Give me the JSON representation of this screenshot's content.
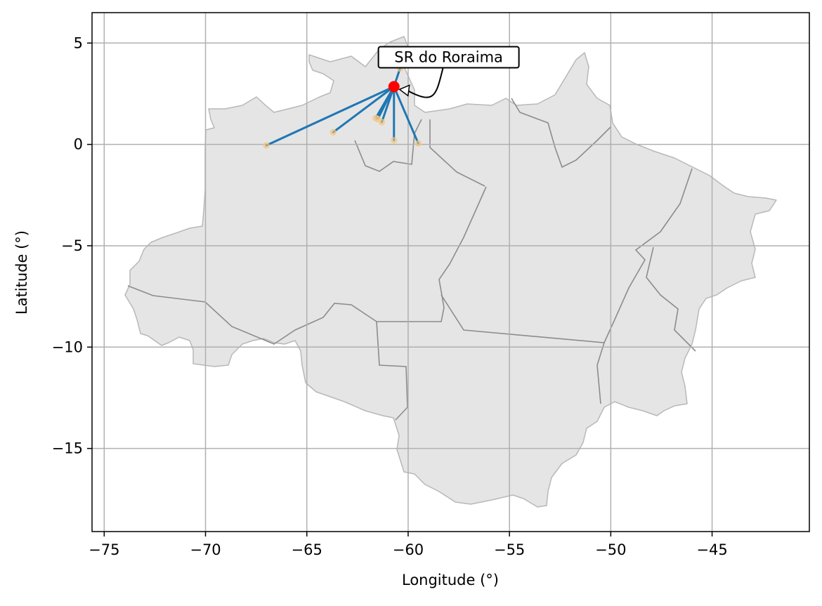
{
  "chart_data": {
    "type": "scatter",
    "xlabel": "Longitude (°)",
    "ylabel": "Latitude (°)",
    "xlim": [
      -75.6,
      -40.2
    ],
    "ylim": [
      -19.1,
      6.5
    ],
    "grid": true,
    "xticks": [
      {
        "value": -75,
        "label": "−75"
      },
      {
        "value": -70,
        "label": "−70"
      },
      {
        "value": -65,
        "label": "−65"
      },
      {
        "value": -60,
        "label": "−60"
      },
      {
        "value": -55,
        "label": "−55"
      },
      {
        "value": -50,
        "label": "−50"
      },
      {
        "value": -45,
        "label": "−45"
      }
    ],
    "yticks": [
      {
        "value": 5,
        "label": "5"
      },
      {
        "value": 0,
        "label": "0"
      },
      {
        "value": -5,
        "label": "−5"
      },
      {
        "value": -10,
        "label": "−10"
      },
      {
        "value": -15,
        "label": "−15"
      }
    ],
    "hub": {
      "lon": -60.7,
      "lat": 2.85,
      "label": "SR do Roraima",
      "color": "#ff0000"
    },
    "annotation": {
      "text": "SR do Roraima",
      "lon": -58.0,
      "lat": 4.3
    },
    "destinations": [
      {
        "lon": -67.0,
        "lat": -0.05
      },
      {
        "lon": -63.7,
        "lat": 0.6
      },
      {
        "lon": -61.6,
        "lat": 1.3
      },
      {
        "lon": -61.5,
        "lat": 1.25
      },
      {
        "lon": -61.3,
        "lat": 1.1
      },
      {
        "lon": -60.7,
        "lat": 0.2
      },
      {
        "lon": -59.5,
        "lat": 0.05
      },
      {
        "lon": -60.4,
        "lat": 3.75
      }
    ],
    "line_color": "#1f77b4",
    "point_color": "#f5c77e",
    "region_fill": "#e5e5e5",
    "region_stroke": "#8c8c8c"
  }
}
